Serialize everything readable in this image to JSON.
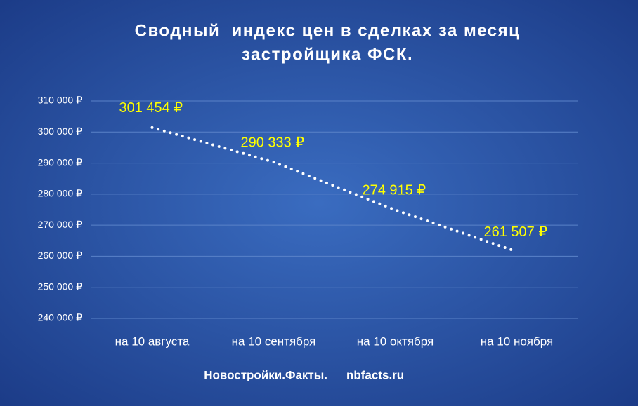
{
  "chart_data": {
    "type": "line",
    "title": [
      "Сводный  индекс цен в сделках за месяц",
      "застройщика ФСК."
    ],
    "categories": [
      "на 10 августа",
      "на 10 сентября",
      "на 10 октября",
      "на 10 ноября"
    ],
    "values": [
      301454,
      290333,
      274915,
      261507
    ],
    "value_labels": [
      "301 454 ₽",
      "290 333 ₽",
      "274 915 ₽",
      "261 507 ₽"
    ],
    "color": "#ffffff",
    "label_color": "#ffff00",
    "ylim": [
      240000,
      310000
    ],
    "yticks": [
      {
        "value": 240000,
        "label": "240 000 ₽"
      },
      {
        "value": 250000,
        "label": "250 000 ₽"
      },
      {
        "value": 260000,
        "label": "260 000 ₽"
      },
      {
        "value": 270000,
        "label": "270 000 ₽"
      },
      {
        "value": 280000,
        "label": "280 000 ₽"
      },
      {
        "value": 290000,
        "label": "290 000 ₽"
      },
      {
        "value": 300000,
        "label": "300 000 ₽"
      },
      {
        "value": 310000,
        "label": "310 000 ₽"
      }
    ],
    "grid": true,
    "footer": [
      "Новостройки.Факты.",
      "nbfacts.ru"
    ]
  }
}
